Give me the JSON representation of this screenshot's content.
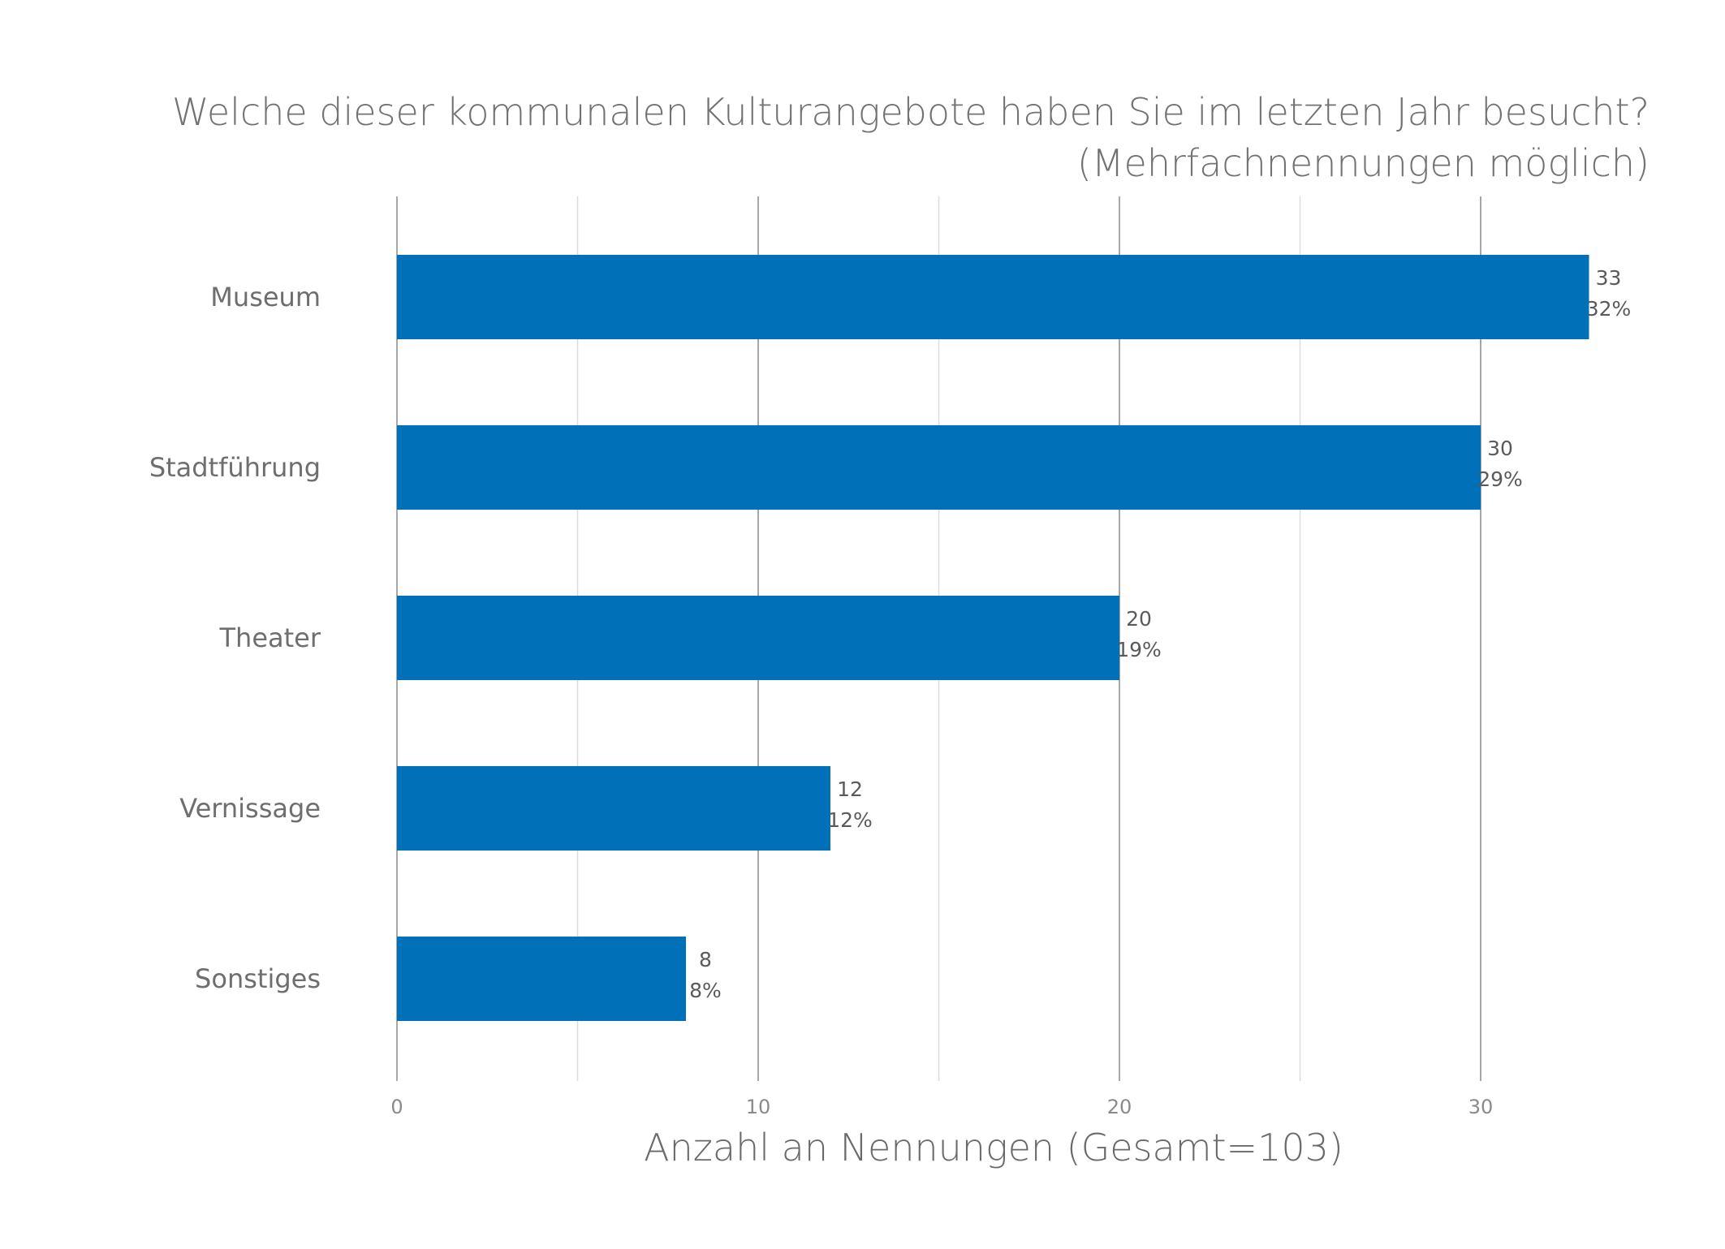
{
  "chart_data": {
    "type": "bar",
    "orientation": "horizontal",
    "title": "Welche dieser kommunalen Kulturangebote haben Sie im letzten Jahr besucht?",
    "subtitle": "(Mehrfachnennungen möglich)",
    "xlabel": "Anzahl an Nennungen (Gesamt=103)",
    "ylabel": "",
    "categories": [
      "Museum",
      "Stadtführung",
      "Theater",
      "Vernissage",
      "Sonstiges"
    ],
    "values": [
      33,
      30,
      20,
      12,
      8
    ],
    "percent_labels": [
      "32%",
      "29%",
      "19%",
      "12%",
      "8%"
    ],
    "xlim": [
      0,
      35
    ],
    "xticks": [
      0,
      10,
      20,
      30
    ],
    "minor_gridlines": [
      5,
      15,
      25
    ],
    "grid": true,
    "legend": "none",
    "bar_color": "#0070b8"
  },
  "colors": {
    "bar": "#0070b8",
    "major_grid": "#a8a8a8",
    "minor_grid": "#dcdcdc",
    "text": "#6e6e6e"
  }
}
